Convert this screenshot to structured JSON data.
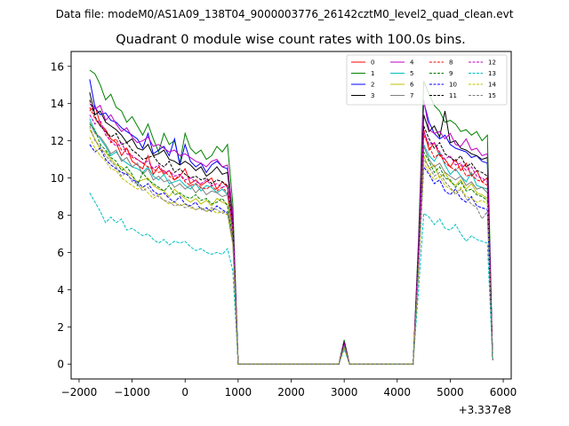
{
  "chart_data": {
    "type": "line",
    "suptitle": "Data file: modeM0/AS1A09_138T04_9000003776_26142cztM0_level2_quad_clean.evt",
    "title": "Quadrant 0 module wise count rates with 100.0s bins.",
    "xlabel": "",
    "ylabel": "",
    "x_offset_label": "+3.337e8",
    "xlim": [
      -2150,
      6150
    ],
    "ylim": [
      -0.8,
      16.8
    ],
    "x_ticks": [
      -2000,
      -1000,
      0,
      1000,
      2000,
      3000,
      4000,
      5000,
      6000
    ],
    "x_tick_labels": [
      "−2000",
      "−1000",
      "0",
      "1000",
      "2000",
      "3000",
      "4000",
      "5000",
      "6000"
    ],
    "y_ticks": [
      0,
      2,
      4,
      6,
      8,
      10,
      12,
      14,
      16
    ],
    "y_tick_labels": [
      "0",
      "2",
      "4",
      "6",
      "8",
      "10",
      "12",
      "14",
      "16"
    ],
    "grid": false,
    "legend_position": "top-right",
    "legend_columns": 4,
    "x": [
      -1800,
      -1700,
      -1600,
      -1500,
      -1400,
      -1300,
      -1200,
      -1100,
      -1000,
      -900,
      -800,
      -700,
      -600,
      -500,
      -400,
      -300,
      -200,
      -100,
      0,
      100,
      200,
      300,
      400,
      500,
      600,
      700,
      800,
      900,
      1000,
      2900,
      3000,
      3100,
      4300,
      4400,
      4500,
      4600,
      4700,
      4800,
      4900,
      5000,
      5100,
      5200,
      5300,
      5400,
      5500,
      5600,
      5700,
      5800
    ],
    "series": [
      {
        "name": "0",
        "color": "#ff0000",
        "dash": "solid",
        "values": [
          13.6,
          13.9,
          12.9,
          12.6,
          12.1,
          11.9,
          11.2,
          11.6,
          10.9,
          10.7,
          10.5,
          11.2,
          10.2,
          10.6,
          10.2,
          10.4,
          9.9,
          10.1,
          10.5,
          9.7,
          9.9,
          9.6,
          9.8,
          10.0,
          9.4,
          9.8,
          9.5,
          7.5,
          0,
          0,
          1.1,
          0,
          0,
          5.5,
          12.6,
          11.5,
          11.9,
          11.2,
          11.0,
          10.6,
          11.0,
          10.4,
          10.8,
          10.1,
          10.4,
          9.8,
          10.0,
          0.2
        ]
      },
      {
        "name": "1",
        "color": "#008000",
        "dash": "solid",
        "values": [
          15.8,
          15.6,
          15.0,
          14.2,
          14.5,
          13.8,
          13.6,
          13.0,
          13.3,
          12.8,
          12.3,
          12.9,
          12.1,
          11.4,
          12.4,
          11.8,
          12.0,
          10.8,
          12.4,
          11.6,
          11.3,
          11.5,
          11.0,
          11.2,
          11.7,
          11.4,
          11.8,
          8.6,
          0,
          0,
          1.3,
          0,
          0,
          6.6,
          15.2,
          14.5,
          13.9,
          13.6,
          13.0,
          13.1,
          12.9,
          12.5,
          12.6,
          12.3,
          12.5,
          12.0,
          12.3,
          0.3
        ]
      },
      {
        "name": "2",
        "color": "#0000ff",
        "dash": "solid",
        "values": [
          15.3,
          13.8,
          13.4,
          13.5,
          13.1,
          13.0,
          12.7,
          12.5,
          12.3,
          12.1,
          11.6,
          12.4,
          11.3,
          11.5,
          11.7,
          11.2,
          12.1,
          10.7,
          11.8,
          10.9,
          10.6,
          10.8,
          10.3,
          10.7,
          10.9,
          10.6,
          10.5,
          7.9,
          0,
          0,
          1.1,
          0,
          0,
          6.1,
          14.1,
          13.0,
          12.4,
          12.1,
          12.3,
          11.8,
          11.6,
          11.5,
          11.4,
          11.1,
          11.2,
          10.9,
          10.8,
          0.2
        ]
      },
      {
        "name": "3",
        "color": "#000000",
        "dash": "solid",
        "values": [
          14.6,
          13.4,
          13.6,
          13.0,
          12.8,
          12.6,
          12.3,
          11.9,
          12.1,
          11.6,
          11.5,
          11.8,
          11.2,
          11.3,
          11.5,
          11.0,
          10.9,
          10.7,
          10.9,
          10.7,
          10.4,
          10.6,
          10.1,
          10.3,
          10.6,
          10.2,
          10.3,
          7.8,
          0,
          0,
          1.2,
          0,
          0,
          6.0,
          13.4,
          12.5,
          12.8,
          12.2,
          13.6,
          11.9,
          12.0,
          11.6,
          11.5,
          11.3,
          11.2,
          11.0,
          11.1,
          0.2
        ]
      },
      {
        "name": "4",
        "color": "#bf00bf",
        "dash": "solid",
        "values": [
          14.0,
          13.7,
          13.9,
          13.1,
          13.4,
          12.9,
          12.5,
          12.7,
          12.2,
          11.9,
          12.0,
          12.2,
          11.7,
          11.8,
          11.6,
          11.4,
          11.5,
          11.2,
          11.3,
          11.1,
          10.9,
          10.8,
          10.6,
          10.9,
          11.0,
          10.6,
          10.7,
          8.0,
          0,
          0,
          1.2,
          0,
          0,
          6.2,
          14.2,
          12.6,
          12.4,
          12.5,
          12.1,
          12.4,
          11.8,
          11.7,
          12.1,
          11.5,
          11.6,
          11.2,
          11.3,
          0.2
        ]
      },
      {
        "name": "5",
        "color": "#00bfbf",
        "dash": "solid",
        "values": [
          13.2,
          12.5,
          12.1,
          11.7,
          11.2,
          11.4,
          11.0,
          10.8,
          10.6,
          10.5,
          10.3,
          10.6,
          10.1,
          9.9,
          10.2,
          9.7,
          9.8,
          9.9,
          9.6,
          9.4,
          9.7,
          9.3,
          9.6,
          9.5,
          9.2,
          9.4,
          9.1,
          7.2,
          0,
          0,
          1.0,
          0,
          0,
          5.4,
          11.8,
          11.2,
          10.9,
          11.4,
          10.7,
          10.2,
          10.5,
          10.1,
          9.8,
          10.3,
          9.6,
          9.5,
          9.4,
          0.2
        ]
      },
      {
        "name": "6",
        "color": "#bfbf00",
        "dash": "solid",
        "values": [
          12.6,
          12.1,
          11.5,
          11.4,
          11.0,
          10.7,
          10.6,
          10.3,
          10.1,
          9.8,
          9.9,
          10.0,
          9.6,
          9.4,
          9.3,
          9.0,
          9.4,
          9.1,
          8.9,
          8.7,
          8.9,
          8.6,
          8.8,
          8.5,
          8.9,
          8.7,
          8.6,
          6.8,
          0,
          0,
          1.0,
          0,
          0,
          5.1,
          11.2,
          10.5,
          10.7,
          10.0,
          10.3,
          9.8,
          9.6,
          9.9,
          9.4,
          9.7,
          9.2,
          9.1,
          8.9,
          0.2
        ]
      },
      {
        "name": "7",
        "color": "#808080",
        "dash": "solid",
        "values": [
          13.0,
          12.4,
          12.2,
          11.8,
          11.3,
          11.5,
          10.9,
          11.1,
          10.6,
          10.8,
          10.2,
          10.5,
          9.9,
          10.1,
          9.8,
          9.9,
          9.5,
          9.7,
          9.4,
          9.6,
          9.2,
          9.5,
          9.1,
          9.3,
          9.2,
          9.0,
          9.1,
          7.1,
          0,
          0,
          1.0,
          0,
          0,
          5.3,
          11.7,
          11.0,
          10.6,
          10.8,
          10.3,
          10.1,
          9.9,
          10.1,
          9.6,
          9.8,
          9.4,
          9.5,
          9.2,
          0.2
        ]
      },
      {
        "name": "8",
        "color": "#ff0000",
        "dash": "dashed",
        "values": [
          13.8,
          13.2,
          12.8,
          12.5,
          11.9,
          12.1,
          11.5,
          11.6,
          11.1,
          11.0,
          10.8,
          10.6,
          10.5,
          10.3,
          10.4,
          10.1,
          9.9,
          10.2,
          9.8,
          9.6,
          9.7,
          9.5,
          9.4,
          9.6,
          9.3,
          9.5,
          9.2,
          7.2,
          0,
          0,
          1.1,
          0,
          0,
          5.5,
          12.3,
          11.7,
          11.1,
          11.3,
          10.8,
          10.6,
          10.4,
          10.7,
          10.1,
          10.2,
          9.9,
          9.8,
          9.6,
          0.2
        ]
      },
      {
        "name": "9",
        "color": "#008000",
        "dash": "dashed",
        "values": [
          12.9,
          12.6,
          11.8,
          11.5,
          11.1,
          10.9,
          10.4,
          10.6,
          10.2,
          9.6,
          10.3,
          9.9,
          9.7,
          9.5,
          9.3,
          9.6,
          9.1,
          9.2,
          9.0,
          8.9,
          9.1,
          8.8,
          8.9,
          8.6,
          8.7,
          8.9,
          8.5,
          6.8,
          0,
          0,
          1.0,
          0,
          0,
          5.2,
          11.4,
          10.9,
          10.3,
          10.6,
          10.0,
          9.9,
          9.5,
          9.8,
          9.3,
          9.4,
          9.1,
          9.0,
          8.8,
          0.2
        ]
      },
      {
        "name": "10",
        "color": "#0000ff",
        "dash": "dashed",
        "values": [
          11.8,
          11.4,
          11.6,
          11.0,
          10.7,
          10.5,
          10.3,
          10.2,
          9.9,
          9.8,
          9.5,
          9.7,
          9.3,
          9.1,
          9.2,
          8.9,
          8.7,
          9.0,
          8.6,
          8.5,
          8.7,
          8.3,
          8.4,
          8.2,
          8.5,
          8.3,
          8.1,
          6.5,
          0,
          0,
          0.9,
          0,
          0,
          4.9,
          10.6,
          10.2,
          9.7,
          9.9,
          9.3,
          9.1,
          9.4,
          8.9,
          8.7,
          9.0,
          8.5,
          8.4,
          8.3,
          0.2
        ]
      },
      {
        "name": "11",
        "color": "#000000",
        "dash": "dashed",
        "values": [
          14.2,
          13.3,
          12.8,
          12.5,
          12.2,
          12.4,
          11.8,
          11.9,
          11.5,
          11.3,
          11.0,
          11.1,
          11.2,
          10.8,
          10.6,
          10.9,
          10.3,
          10.5,
          10.2,
          10.0,
          10.1,
          9.9,
          10.0,
          9.7,
          9.9,
          9.8,
          9.6,
          7.5,
          0,
          0,
          1.2,
          0,
          0,
          5.8,
          12.8,
          12.1,
          11.6,
          11.9,
          11.3,
          11.1,
          10.9,
          11.2,
          10.6,
          10.8,
          10.4,
          10.3,
          10.1,
          0.2
        ]
      },
      {
        "name": "12",
        "color": "#bf00bf",
        "dash": "dashed",
        "values": [
          13.4,
          12.9,
          13.1,
          12.3,
          12.0,
          11.7,
          11.9,
          11.3,
          11.2,
          11.0,
          10.8,
          10.9,
          10.5,
          10.7,
          10.3,
          10.4,
          10.1,
          10.2,
          9.9,
          10.0,
          9.8,
          9.7,
          9.9,
          9.6,
          9.7,
          9.5,
          9.6,
          7.4,
          0,
          0,
          1.1,
          0,
          0,
          5.6,
          12.5,
          11.8,
          11.9,
          11.4,
          11.0,
          11.2,
          10.7,
          10.8,
          10.4,
          10.6,
          10.1,
          10.0,
          9.8,
          0.2
        ]
      },
      {
        "name": "13",
        "color": "#00bfbf",
        "dash": "dashed",
        "values": [
          9.2,
          8.7,
          8.2,
          7.6,
          7.9,
          7.6,
          7.8,
          7.2,
          7.3,
          7.1,
          6.9,
          7.0,
          6.7,
          6.5,
          6.7,
          6.4,
          6.6,
          6.5,
          6.6,
          6.3,
          6.1,
          6.2,
          6.0,
          5.9,
          6.0,
          5.9,
          6.2,
          5.0,
          0,
          0,
          0.8,
          0,
          0,
          3.9,
          8.1,
          7.9,
          7.5,
          7.8,
          7.3,
          7.2,
          7.5,
          7.0,
          6.6,
          6.9,
          6.7,
          6.6,
          6.5,
          0.2
        ]
      },
      {
        "name": "14",
        "color": "#bfbf00",
        "dash": "dashed",
        "values": [
          12.2,
          11.6,
          11.2,
          10.9,
          10.5,
          10.4,
          10.0,
          9.8,
          9.6,
          9.4,
          9.5,
          9.2,
          8.9,
          9.1,
          8.8,
          8.6,
          8.7,
          8.5,
          8.6,
          8.4,
          8.3,
          8.4,
          8.2,
          8.3,
          8.1,
          8.2,
          8.0,
          6.4,
          0,
          0,
          0.9,
          0,
          0,
          4.8,
          10.8,
          10.3,
          9.9,
          10.1,
          9.6,
          9.4,
          9.2,
          9.5,
          9.0,
          8.9,
          8.7,
          8.8,
          8.6,
          0.2
        ]
      },
      {
        "name": "15",
        "color": "#808080",
        "dash": "dashed",
        "values": [
          12.8,
          12.0,
          11.7,
          11.2,
          10.9,
          10.6,
          10.1,
          10.3,
          9.8,
          9.7,
          9.3,
          9.5,
          9.1,
          9.0,
          8.8,
          8.7,
          8.5,
          8.6,
          8.4,
          8.5,
          8.3,
          8.4,
          8.2,
          8.4,
          8.3,
          8.1,
          8.2,
          6.5,
          0,
          0,
          1.0,
          0,
          0,
          5.0,
          11.0,
          10.6,
          10.1,
          10.3,
          9.8,
          9.5,
          9.1,
          9.4,
          8.9,
          8.6,
          8.4,
          7.8,
          8.2,
          0.2
        ]
      }
    ]
  }
}
